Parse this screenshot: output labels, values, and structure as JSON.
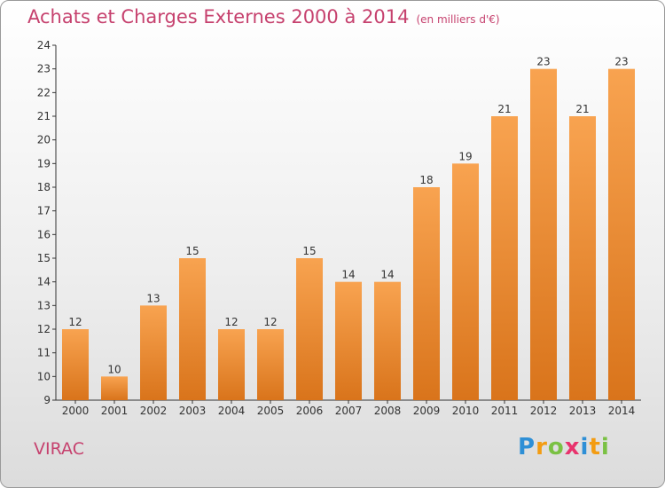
{
  "title": "Achats et Charges Externes 2000 à 2014",
  "unit_label": "(en milliers d'€)",
  "city": "VIRAC",
  "brand": {
    "letters": [
      "P",
      "r",
      "o",
      "x",
      "i",
      "t",
      "i"
    ],
    "colors": [
      "#2e8fd6",
      "#f39c12",
      "#7ac143",
      "#e8336d",
      "#2e8fd6",
      "#f39c12",
      "#7ac143"
    ]
  },
  "colors": {
    "title": "#c6416e",
    "bar_top": "#f8a350",
    "bar_bottom": "#d9741b",
    "axis": "#333333"
  },
  "chart_data": {
    "type": "bar",
    "title": "Achats et Charges Externes 2000 à 2014",
    "xlabel": "",
    "ylabel": "",
    "categories": [
      "2000",
      "2001",
      "2002",
      "2003",
      "2004",
      "2005",
      "2006",
      "2007",
      "2008",
      "2009",
      "2010",
      "2011",
      "2012",
      "2013",
      "2014"
    ],
    "values": [
      12,
      10,
      13,
      15,
      12,
      12,
      15,
      14,
      14,
      18,
      19,
      21,
      23,
      21,
      23
    ],
    "ylim": [
      9,
      24
    ],
    "yticks": [
      9,
      10,
      11,
      12,
      13,
      14,
      15,
      16,
      17,
      18,
      19,
      20,
      21,
      22,
      23,
      24
    ],
    "grid": false,
    "data_labels": true
  }
}
